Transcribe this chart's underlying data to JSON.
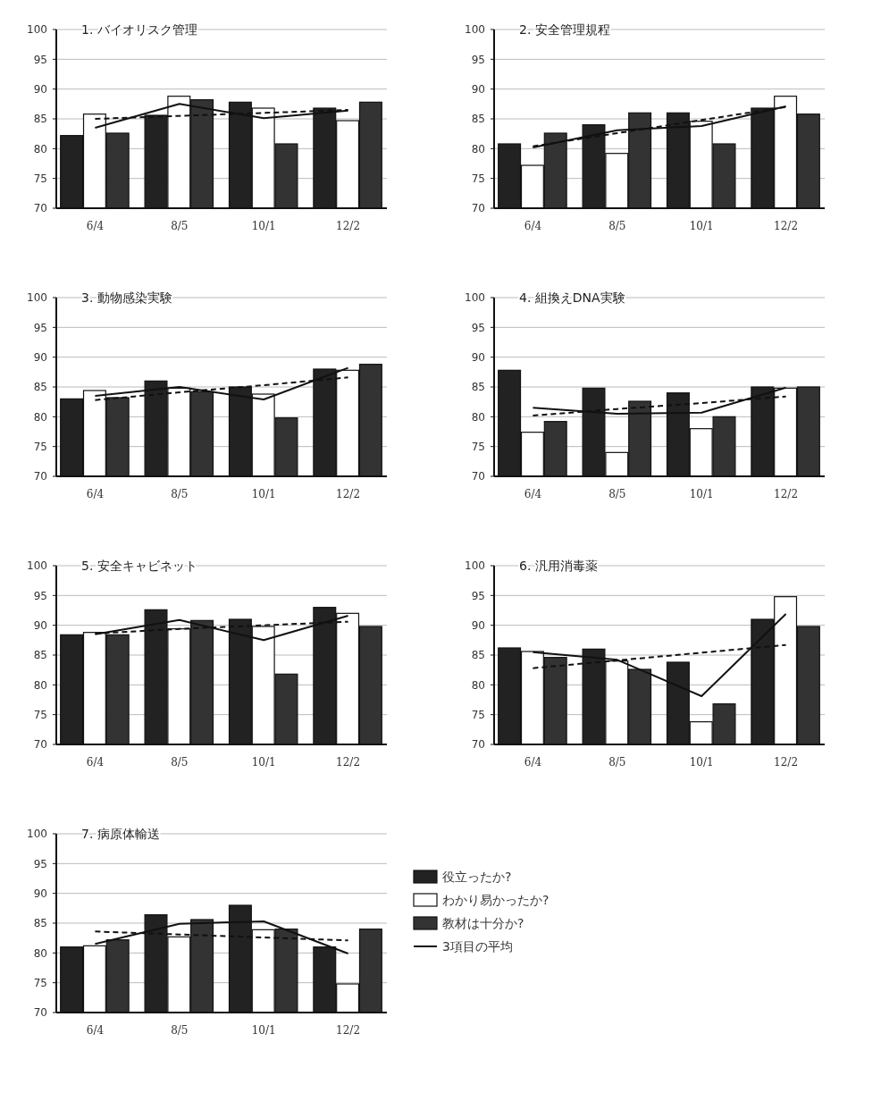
{
  "chart_data": [
    {
      "type": "bar",
      "title": "1. バイオリスク管理",
      "categories": [
        "6/4",
        "8/5",
        "10/1",
        "12/2"
      ],
      "ylim": [
        70,
        100
      ],
      "yticks": [
        70,
        75,
        80,
        85,
        90,
        95,
        100
      ],
      "grid": "y",
      "series": [
        {
          "color": "#222222",
          "values": [
            82.2,
            85.6,
            87.8,
            86.8
          ]
        },
        {
          "color": "#ffffff",
          "values": [
            85.8,
            88.8,
            86.8,
            84.7
          ]
        },
        {
          "color": "#333333",
          "values": [
            82.6,
            88.2,
            80.8,
            87.8
          ]
        },
        {
          "type": "line",
          "color": "#111111",
          "values": [
            83.5,
            87.5,
            85.1,
            86.4
          ]
        },
        {
          "type": "line",
          "color": "#111111",
          "line_style": "dashed",
          "values": [
            85.0,
            85.5,
            86.0,
            86.5
          ]
        }
      ]
    },
    {
      "type": "bar",
      "title": "2. 安全管理規程",
      "categories": [
        "6/4",
        "8/5",
        "10/1",
        "12/2"
      ],
      "ylim": [
        70,
        100
      ],
      "yticks": [
        70,
        75,
        80,
        85,
        90,
        95,
        100
      ],
      "grid": "y",
      "series": [
        {
          "color": "#222222",
          "values": [
            80.8,
            84.0,
            86.0,
            86.8
          ]
        },
        {
          "color": "#ffffff",
          "values": [
            77.2,
            79.2,
            84.6,
            88.8
          ]
        },
        {
          "color": "#333333",
          "values": [
            82.6,
            86.0,
            80.8,
            85.8
          ]
        },
        {
          "type": "line",
          "color": "#111111",
          "values": [
            80.2,
            83.1,
            83.8,
            87.1
          ]
        },
        {
          "type": "line",
          "color": "#111111",
          "line_style": "dashed",
          "values": [
            80.4,
            82.6,
            84.8,
            87.0
          ]
        }
      ]
    },
    {
      "type": "bar",
      "title": "3. 動物感染実験",
      "categories": [
        "6/4",
        "8/5",
        "10/1",
        "12/2"
      ],
      "ylim": [
        70,
        100
      ],
      "yticks": [
        70,
        75,
        80,
        85,
        90,
        95,
        100
      ],
      "grid": "y",
      "series": [
        {
          "color": "#222222",
          "values": [
            83.0,
            86.0,
            85.0,
            88.0
          ]
        },
        {
          "color": "#ffffff",
          "values": [
            84.4,
            84.8,
            83.8,
            87.8
          ]
        },
        {
          "color": "#333333",
          "values": [
            83.2,
            84.2,
            79.8,
            88.8
          ]
        },
        {
          "type": "line",
          "color": "#111111",
          "values": [
            83.5,
            85.0,
            82.9,
            88.2
          ]
        },
        {
          "type": "line",
          "color": "#111111",
          "line_style": "dashed",
          "values": [
            82.8,
            84.1,
            85.3,
            86.6
          ]
        }
      ]
    },
    {
      "type": "bar",
      "title": "4. 組換えDNA実験",
      "categories": [
        "6/4",
        "8/5",
        "10/1",
        "12/2"
      ],
      "ylim": [
        70,
        100
      ],
      "yticks": [
        70,
        75,
        80,
        85,
        90,
        95,
        100
      ],
      "grid": "y",
      "series": [
        {
          "color": "#222222",
          "values": [
            87.8,
            84.8,
            84.0,
            85.0
          ]
        },
        {
          "color": "#ffffff",
          "values": [
            77.4,
            74.0,
            78.0,
            84.8
          ]
        },
        {
          "color": "#333333",
          "values": [
            79.2,
            82.6,
            80.0,
            85.0
          ]
        },
        {
          "type": "line",
          "color": "#111111",
          "values": [
            81.5,
            80.5,
            80.7,
            84.9
          ]
        },
        {
          "type": "line",
          "color": "#111111",
          "line_style": "dashed",
          "values": [
            80.2,
            81.3,
            82.3,
            83.4
          ]
        }
      ]
    },
    {
      "type": "bar",
      "title": "5. 安全キャビネット",
      "categories": [
        "6/4",
        "8/5",
        "10/1",
        "12/2"
      ],
      "ylim": [
        70,
        100
      ],
      "yticks": [
        70,
        75,
        80,
        85,
        90,
        95,
        100
      ],
      "grid": "y",
      "series": [
        {
          "color": "#222222",
          "values": [
            88.4,
            92.6,
            91.0,
            93.0
          ]
        },
        {
          "color": "#ffffff",
          "values": [
            88.8,
            89.4,
            89.8,
            92.0
          ]
        },
        {
          "color": "#333333",
          "values": [
            88.4,
            90.8,
            81.8,
            89.8
          ]
        },
        {
          "type": "line",
          "color": "#111111",
          "values": [
            88.5,
            90.9,
            87.5,
            91.6
          ]
        },
        {
          "type": "line",
          "color": "#111111",
          "line_style": "dashed",
          "values": [
            88.6,
            89.4,
            90.0,
            90.6
          ]
        }
      ]
    },
    {
      "type": "bar",
      "title": "6. 汎用消毒薬",
      "categories": [
        "6/4",
        "8/5",
        "10/1",
        "12/2"
      ],
      "ylim": [
        70,
        100
      ],
      "yticks": [
        70,
        75,
        80,
        85,
        90,
        95,
        100
      ],
      "grid": "y",
      "series": [
        {
          "color": "#222222",
          "values": [
            86.2,
            86.0,
            83.8,
            91.0
          ]
        },
        {
          "color": "#ffffff",
          "values": [
            85.6,
            84.0,
            73.8,
            94.8
          ]
        },
        {
          "color": "#333333",
          "values": [
            84.6,
            82.6,
            76.8,
            89.8
          ]
        },
        {
          "type": "line",
          "color": "#111111",
          "values": [
            85.5,
            84.2,
            78.1,
            91.9
          ]
        },
        {
          "type": "line",
          "color": "#111111",
          "line_style": "dashed",
          "values": [
            82.8,
            84.1,
            85.4,
            86.7
          ]
        }
      ]
    },
    {
      "type": "bar",
      "title": "7. 病原体輸送",
      "categories": [
        "6/4",
        "8/5",
        "10/1",
        "12/2"
      ],
      "ylim": [
        70,
        100
      ],
      "yticks": [
        70,
        75,
        80,
        85,
        90,
        95,
        100
      ],
      "grid": "y",
      "legend": "right",
      "series": [
        {
          "name": "役立ったか?",
          "color": "#222222",
          "values": [
            81.0,
            86.4,
            88.0,
            81.0
          ]
        },
        {
          "name": "わかり易かったか?",
          "color": "#ffffff",
          "values": [
            81.2,
            82.7,
            83.9,
            74.8
          ]
        },
        {
          "name": "教材は十分か?",
          "color": "#333333",
          "values": [
            82.2,
            85.6,
            84.0,
            84.0
          ]
        },
        {
          "name": "3項目の平均",
          "type": "line",
          "color": "#111111",
          "values": [
            81.5,
            84.9,
            85.3,
            79.9
          ]
        },
        {
          "type": "line",
          "color": "#111111",
          "line_style": "dashed",
          "values": [
            83.6,
            83.1,
            82.6,
            82.1
          ]
        }
      ]
    }
  ]
}
